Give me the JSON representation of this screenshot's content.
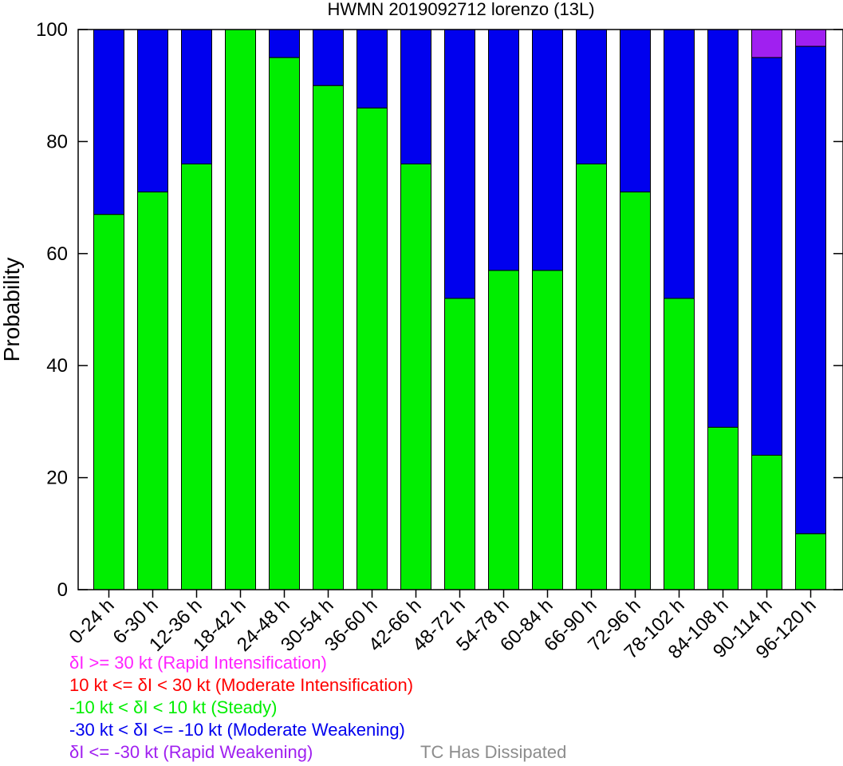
{
  "colors": {
    "rapid_intensification": "#ff22ff",
    "moderate_intensification": "#ff0000",
    "steady": "#00ee00",
    "moderate_weakening": "#0000ee",
    "rapid_weakening": "#a020f0",
    "dissipated": "#8c8c8c"
  },
  "chart_data": {
    "type": "bar",
    "stacked": true,
    "title": "HWMN 2019092712 lorenzo (13L)",
    "xlabel": "",
    "ylabel": "Probability",
    "ylim": [
      0,
      100
    ],
    "yticks": [
      0,
      20,
      40,
      60,
      80,
      100
    ],
    "grid": false,
    "categories": [
      "0-24 h",
      "6-30 h",
      "12-36 h",
      "18-42 h",
      "24-48 h",
      "30-54 h",
      "36-60 h",
      "42-66 h",
      "48-72 h",
      "54-78 h",
      "60-84 h",
      "66-90 h",
      "72-96 h",
      "78-102 h",
      "84-108 h",
      "90-114 h",
      "96-120 h"
    ],
    "series": [
      {
        "key": "steady",
        "color": "#00ee00",
        "values": [
          67,
          71,
          76,
          100,
          95,
          90,
          86,
          76,
          52,
          57,
          57,
          76,
          71,
          52,
          29,
          24,
          10
        ]
      },
      {
        "key": "moderate_weakening",
        "color": "#0000ee",
        "values": [
          33,
          29,
          24,
          0,
          5,
          10,
          14,
          24,
          48,
          43,
          43,
          24,
          29,
          48,
          71,
          71,
          87
        ]
      },
      {
        "key": "rapid_weakening",
        "color": "#a020f0",
        "values": [
          0,
          0,
          0,
          0,
          0,
          0,
          0,
          0,
          0,
          0,
          0,
          0,
          0,
          0,
          0,
          5,
          3
        ]
      }
    ]
  },
  "legend": {
    "rapid_intensification": "δI >= 30 kt (Rapid Intensification)",
    "moderate_intensification": "10 kt <= δI < 30 kt (Moderate Intensification)",
    "steady": "-10 kt < δI < 10 kt (Steady)",
    "moderate_weakening": "-30 kt < δI <= -10 kt (Moderate Weakening)",
    "rapid_weakening": "δI <= -30 kt (Rapid Weakening)",
    "dissipated": "TC Has Dissipated"
  }
}
